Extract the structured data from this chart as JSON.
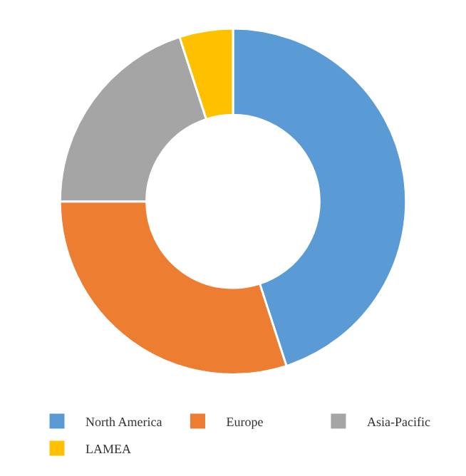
{
  "chart_data": {
    "type": "donut",
    "categories": [
      "North America",
      "Europe",
      "Asia-Pacific",
      "LAMEA"
    ],
    "values": [
      45,
      30,
      20,
      5
    ],
    "colors": [
      "#5b9bd5",
      "#ed7d31",
      "#a5a5a5",
      "#ffc000"
    ],
    "legend": "bottom"
  }
}
